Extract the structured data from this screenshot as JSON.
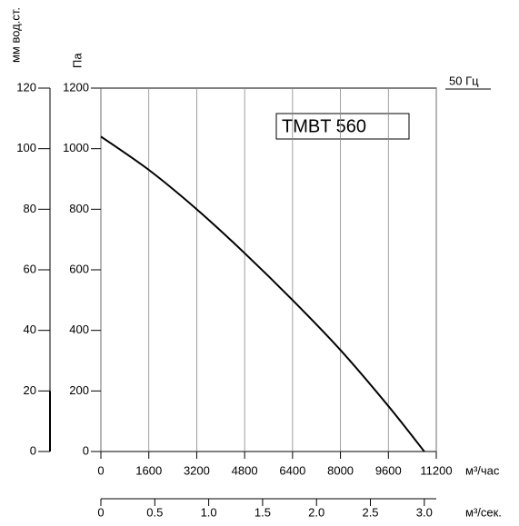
{
  "chart_data": {
    "type": "line",
    "title": "TMBT 560",
    "annotation": "50 Гц",
    "y_label": "Па",
    "y2_label": "мм вод.ст.",
    "x_label": "м³/час",
    "x2_label": "м³/сек.",
    "x": [
      0,
      1600,
      3200,
      4800,
      6400,
      8000,
      9600,
      10800
    ],
    "values": [
      1040,
      930,
      800,
      655,
      500,
      335,
      150,
      0
    ],
    "color": "#000000",
    "xlim": [
      0,
      11200
    ],
    "xticks": [
      0,
      1600,
      3200,
      4800,
      6400,
      8000,
      9600,
      11200
    ],
    "x2lim": [
      0,
      3.1111
    ],
    "x2ticks": [
      0,
      0.5,
      {
        "value": 1,
        "label": "1.0"
      },
      1.5,
      {
        "value": 2,
        "label": "2.0"
      },
      2.5,
      {
        "value": 3,
        "label": "3.0"
      }
    ],
    "ylim": [
      0,
      1200
    ],
    "yticks": [
      0,
      200,
      400,
      600,
      800,
      1000,
      1200
    ],
    "y2lim": [
      0,
      120
    ],
    "y2ticks": [
      0,
      20,
      40,
      60,
      80,
      100,
      120
    ],
    "grid": true
  }
}
